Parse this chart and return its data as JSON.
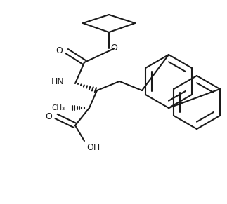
{
  "bg_color": "#ffffff",
  "line_color": "#1a1a1a",
  "line_width": 1.5,
  "figsize": [
    3.23,
    2.91
  ],
  "dpi": 100,
  "xlim": [
    0,
    323
  ],
  "ylim": [
    0,
    291
  ]
}
